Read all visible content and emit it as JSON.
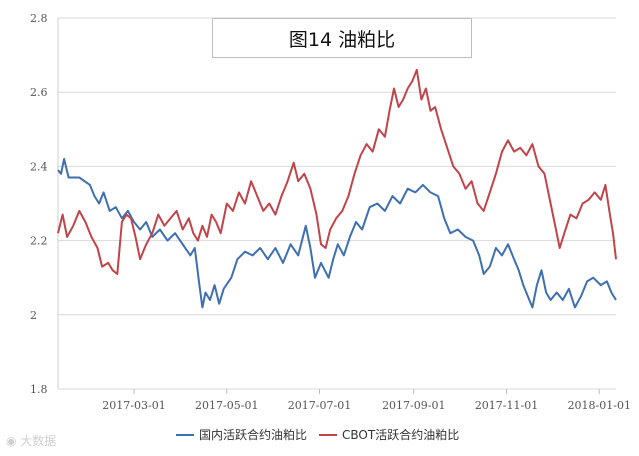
{
  "chart_data": {
    "type": "line",
    "title": "图14 油粕比",
    "xlabel": "",
    "ylabel": "",
    "ylim": [
      1.8,
      2.8
    ],
    "y_ticks": [
      "1.8",
      "2",
      "2.2",
      "2.4",
      "2.6",
      "2.8"
    ],
    "x_range": [
      "2017-01-10",
      "2018-01-12"
    ],
    "x_ticks": [
      "2017-03-01",
      "2017-05-01",
      "2017-07-01",
      "2017-09-01",
      "2017-11-01",
      "2018-01-01"
    ],
    "grid": true,
    "legend_position": "bottom",
    "series": [
      {
        "name": "国内活跃合约油粕比",
        "color": "#3e6fb0",
        "points": [
          [
            "2017-01-10",
            2.39
          ],
          [
            "2017-01-12",
            2.38
          ],
          [
            "2017-01-14",
            2.42
          ],
          [
            "2017-01-17",
            2.37
          ],
          [
            "2017-01-24",
            2.37
          ],
          [
            "2017-01-31",
            2.35
          ],
          [
            "2017-02-03",
            2.32
          ],
          [
            "2017-02-06",
            2.3
          ],
          [
            "2017-02-09",
            2.33
          ],
          [
            "2017-02-13",
            2.28
          ],
          [
            "2017-02-17",
            2.29
          ],
          [
            "2017-02-21",
            2.26
          ],
          [
            "2017-02-25",
            2.28
          ],
          [
            "2017-03-01",
            2.25
          ],
          [
            "2017-03-05",
            2.23
          ],
          [
            "2017-03-09",
            2.25
          ],
          [
            "2017-03-13",
            2.21
          ],
          [
            "2017-03-18",
            2.23
          ],
          [
            "2017-03-23",
            2.2
          ],
          [
            "2017-03-28",
            2.22
          ],
          [
            "2017-04-02",
            2.19
          ],
          [
            "2017-04-07",
            2.16
          ],
          [
            "2017-04-10",
            2.18
          ],
          [
            "2017-04-13",
            2.08
          ],
          [
            "2017-04-15",
            2.02
          ],
          [
            "2017-04-17",
            2.06
          ],
          [
            "2017-04-20",
            2.04
          ],
          [
            "2017-04-23",
            2.08
          ],
          [
            "2017-04-26",
            2.03
          ],
          [
            "2017-04-29",
            2.07
          ],
          [
            "2017-05-04",
            2.1
          ],
          [
            "2017-05-08",
            2.15
          ],
          [
            "2017-05-13",
            2.17
          ],
          [
            "2017-05-18",
            2.16
          ],
          [
            "2017-05-23",
            2.18
          ],
          [
            "2017-05-28",
            2.15
          ],
          [
            "2017-06-02",
            2.18
          ],
          [
            "2017-06-07",
            2.14
          ],
          [
            "2017-06-12",
            2.19
          ],
          [
            "2017-06-17",
            2.16
          ],
          [
            "2017-06-22",
            2.24
          ],
          [
            "2017-06-25",
            2.18
          ],
          [
            "2017-06-28",
            2.1
          ],
          [
            "2017-07-02",
            2.14
          ],
          [
            "2017-07-07",
            2.1
          ],
          [
            "2017-07-10",
            2.15
          ],
          [
            "2017-07-13",
            2.19
          ],
          [
            "2017-07-17",
            2.16
          ],
          [
            "2017-07-21",
            2.21
          ],
          [
            "2017-07-25",
            2.25
          ],
          [
            "2017-07-29",
            2.23
          ],
          [
            "2017-08-03",
            2.29
          ],
          [
            "2017-08-08",
            2.3
          ],
          [
            "2017-08-13",
            2.28
          ],
          [
            "2017-08-18",
            2.32
          ],
          [
            "2017-08-23",
            2.3
          ],
          [
            "2017-08-28",
            2.34
          ],
          [
            "2017-09-02",
            2.33
          ],
          [
            "2017-09-07",
            2.35
          ],
          [
            "2017-09-12",
            2.33
          ],
          [
            "2017-09-17",
            2.32
          ],
          [
            "2017-09-21",
            2.26
          ],
          [
            "2017-09-25",
            2.22
          ],
          [
            "2017-09-30",
            2.23
          ],
          [
            "2017-10-05",
            2.21
          ],
          [
            "2017-10-10",
            2.2
          ],
          [
            "2017-10-14",
            2.16
          ],
          [
            "2017-10-17",
            2.11
          ],
          [
            "2017-10-21",
            2.13
          ],
          [
            "2017-10-25",
            2.18
          ],
          [
            "2017-10-29",
            2.16
          ],
          [
            "2017-11-02",
            2.19
          ],
          [
            "2017-11-06",
            2.15
          ],
          [
            "2017-11-09",
            2.12
          ],
          [
            "2017-11-12",
            2.08
          ],
          [
            "2017-11-15",
            2.05
          ],
          [
            "2017-11-18",
            2.02
          ],
          [
            "2017-11-21",
            2.08
          ],
          [
            "2017-11-24",
            2.12
          ],
          [
            "2017-11-27",
            2.06
          ],
          [
            "2017-11-30",
            2.04
          ],
          [
            "2017-12-04",
            2.06
          ],
          [
            "2017-12-08",
            2.04
          ],
          [
            "2017-12-12",
            2.07
          ],
          [
            "2017-12-16",
            2.02
          ],
          [
            "2017-12-20",
            2.05
          ],
          [
            "2017-12-24",
            2.09
          ],
          [
            "2017-12-28",
            2.1
          ],
          [
            "2018-01-02",
            2.08
          ],
          [
            "2018-01-06",
            2.09
          ],
          [
            "2018-01-09",
            2.06
          ],
          [
            "2018-01-12",
            2.04
          ]
        ]
      },
      {
        "name": "CBOT活跃合约油粕比",
        "color": "#c0444a",
        "points": [
          [
            "2017-01-10",
            2.22
          ],
          [
            "2017-01-13",
            2.27
          ],
          [
            "2017-01-16",
            2.21
          ],
          [
            "2017-01-20",
            2.24
          ],
          [
            "2017-01-24",
            2.28
          ],
          [
            "2017-01-28",
            2.25
          ],
          [
            "2017-02-01",
            2.21
          ],
          [
            "2017-02-05",
            2.18
          ],
          [
            "2017-02-08",
            2.13
          ],
          [
            "2017-02-12",
            2.14
          ],
          [
            "2017-02-15",
            2.12
          ],
          [
            "2017-02-18",
            2.11
          ],
          [
            "2017-02-21",
            2.25
          ],
          [
            "2017-02-24",
            2.27
          ],
          [
            "2017-02-27",
            2.26
          ],
          [
            "2017-03-02",
            2.21
          ],
          [
            "2017-03-05",
            2.15
          ],
          [
            "2017-03-09",
            2.19
          ],
          [
            "2017-03-13",
            2.22
          ],
          [
            "2017-03-17",
            2.27
          ],
          [
            "2017-03-21",
            2.24
          ],
          [
            "2017-03-25",
            2.26
          ],
          [
            "2017-03-29",
            2.28
          ],
          [
            "2017-04-02",
            2.23
          ],
          [
            "2017-04-06",
            2.26
          ],
          [
            "2017-04-09",
            2.22
          ],
          [
            "2017-04-12",
            2.2
          ],
          [
            "2017-04-15",
            2.24
          ],
          [
            "2017-04-18",
            2.21
          ],
          [
            "2017-04-21",
            2.27
          ],
          [
            "2017-04-24",
            2.25
          ],
          [
            "2017-04-27",
            2.22
          ],
          [
            "2017-05-01",
            2.3
          ],
          [
            "2017-05-05",
            2.28
          ],
          [
            "2017-05-09",
            2.33
          ],
          [
            "2017-05-13",
            2.3
          ],
          [
            "2017-05-17",
            2.36
          ],
          [
            "2017-05-21",
            2.32
          ],
          [
            "2017-05-25",
            2.28
          ],
          [
            "2017-05-29",
            2.3
          ],
          [
            "2017-06-02",
            2.27
          ],
          [
            "2017-06-06",
            2.32
          ],
          [
            "2017-06-10",
            2.36
          ],
          [
            "2017-06-14",
            2.41
          ],
          [
            "2017-06-17",
            2.36
          ],
          [
            "2017-06-21",
            2.38
          ],
          [
            "2017-06-25",
            2.34
          ],
          [
            "2017-06-29",
            2.27
          ],
          [
            "2017-07-02",
            2.19
          ],
          [
            "2017-07-05",
            2.18
          ],
          [
            "2017-07-08",
            2.23
          ],
          [
            "2017-07-12",
            2.26
          ],
          [
            "2017-07-16",
            2.28
          ],
          [
            "2017-07-20",
            2.32
          ],
          [
            "2017-07-24",
            2.38
          ],
          [
            "2017-07-28",
            2.43
          ],
          [
            "2017-08-01",
            2.46
          ],
          [
            "2017-08-05",
            2.44
          ],
          [
            "2017-08-09",
            2.5
          ],
          [
            "2017-08-13",
            2.48
          ],
          [
            "2017-08-16",
            2.55
          ],
          [
            "2017-08-19",
            2.61
          ],
          [
            "2017-08-22",
            2.56
          ],
          [
            "2017-08-25",
            2.58
          ],
          [
            "2017-08-28",
            2.61
          ],
          [
            "2017-08-31",
            2.63
          ],
          [
            "2017-09-03",
            2.66
          ],
          [
            "2017-09-06",
            2.58
          ],
          [
            "2017-09-09",
            2.61
          ],
          [
            "2017-09-12",
            2.55
          ],
          [
            "2017-09-15",
            2.56
          ],
          [
            "2017-09-19",
            2.5
          ],
          [
            "2017-09-23",
            2.45
          ],
          [
            "2017-09-27",
            2.4
          ],
          [
            "2017-10-01",
            2.38
          ],
          [
            "2017-10-05",
            2.34
          ],
          [
            "2017-10-09",
            2.36
          ],
          [
            "2017-10-13",
            2.3
          ],
          [
            "2017-10-17",
            2.28
          ],
          [
            "2017-10-21",
            2.33
          ],
          [
            "2017-10-25",
            2.38
          ],
          [
            "2017-10-29",
            2.44
          ],
          [
            "2017-11-02",
            2.47
          ],
          [
            "2017-11-06",
            2.44
          ],
          [
            "2017-11-10",
            2.45
          ],
          [
            "2017-11-14",
            2.43
          ],
          [
            "2017-11-18",
            2.46
          ],
          [
            "2017-11-22",
            2.4
          ],
          [
            "2017-11-26",
            2.38
          ],
          [
            "2017-11-30",
            2.3
          ],
          [
            "2017-12-03",
            2.24
          ],
          [
            "2017-12-06",
            2.18
          ],
          [
            "2017-12-09",
            2.22
          ],
          [
            "2017-12-13",
            2.27
          ],
          [
            "2017-12-17",
            2.26
          ],
          [
            "2017-12-21",
            2.3
          ],
          [
            "2017-12-25",
            2.31
          ],
          [
            "2017-12-29",
            2.33
          ],
          [
            "2018-01-02",
            2.31
          ],
          [
            "2018-01-05",
            2.35
          ],
          [
            "2018-01-08",
            2.27
          ],
          [
            "2018-01-10",
            2.22
          ],
          [
            "2018-01-12",
            2.15
          ]
        ]
      }
    ]
  },
  "watermark": "大数据"
}
